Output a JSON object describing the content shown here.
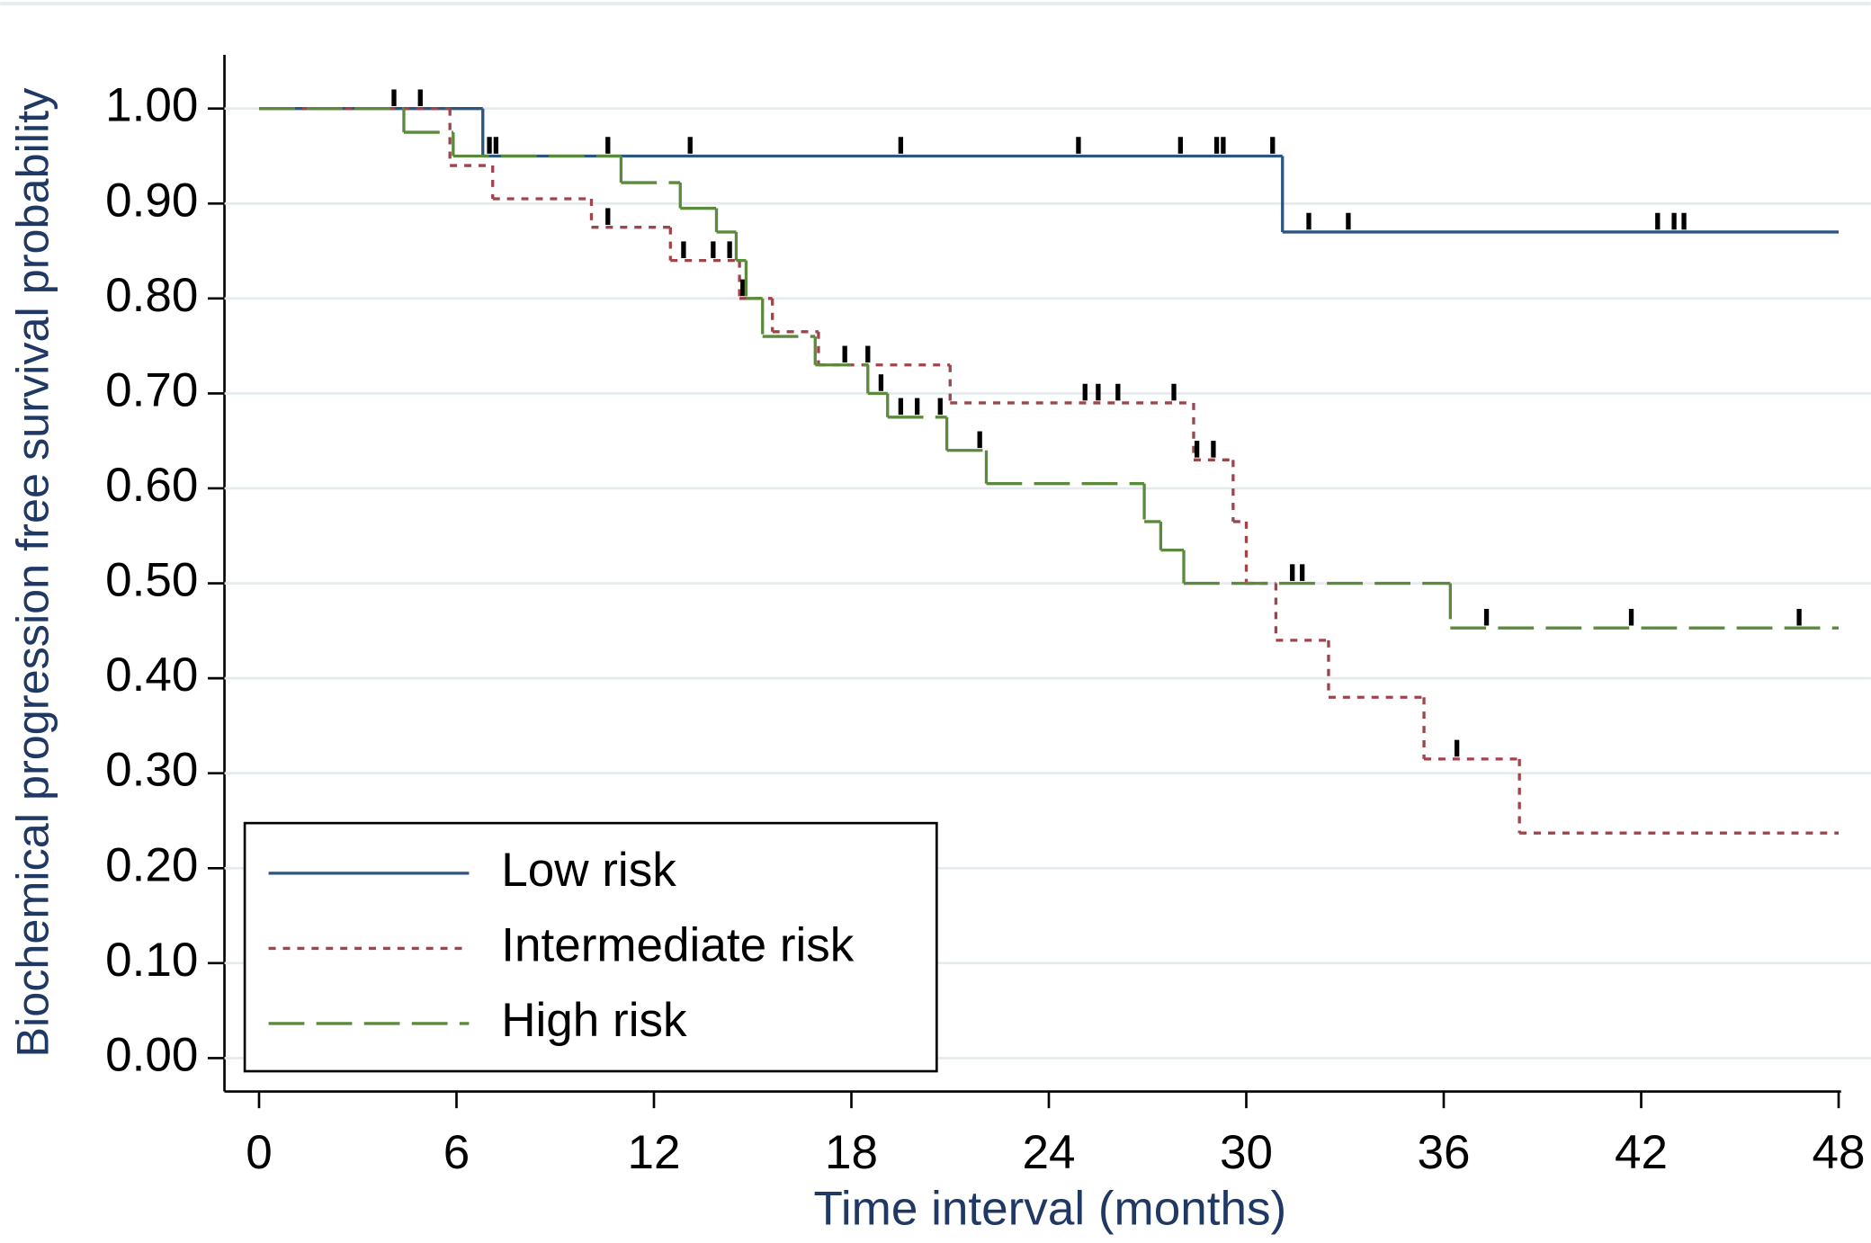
{
  "chart_data": {
    "type": "step",
    "xlabel": "Time interval (months)",
    "ylabel": "Biochemical progression free survival probability",
    "xlim": [
      0,
      48
    ],
    "ylim": [
      0,
      1
    ],
    "xticks": [
      0,
      6,
      12,
      18,
      24,
      30,
      36,
      42,
      48
    ],
    "yticks": [
      {
        "value": 0,
        "label": "0.00"
      },
      {
        "value": 0.1,
        "label": "0.10"
      },
      {
        "value": 0.2,
        "label": "0.20"
      },
      {
        "value": 0.3,
        "label": "0.30"
      },
      {
        "value": 0.4,
        "label": "0.40"
      },
      {
        "value": 0.5,
        "label": "0.50"
      },
      {
        "value": 0.6,
        "label": "0.60"
      },
      {
        "value": 0.7,
        "label": "0.70"
      },
      {
        "value": 0.8,
        "label": "0.80"
      },
      {
        "value": 0.9,
        "label": "0.90"
      },
      {
        "value": 1,
        "label": "1.00"
      }
    ],
    "grid": true,
    "legend": "lower left",
    "series": [
      {
        "name": "Low risk",
        "color": "#2b5582",
        "dash": "none",
        "x": [
          0,
          6.8,
          31.1
        ],
        "values": [
          1.0,
          0.95,
          0.87
        ],
        "censored": [
          4.1,
          4.9,
          7.0,
          10.6,
          13.1,
          19.5,
          24.9,
          28.0,
          29.1,
          29.3,
          30.8,
          31.9,
          33.1,
          42.5,
          43.0,
          43.3
        ]
      },
      {
        "name": "Intermediate risk",
        "color": "#a0444c",
        "dash": "6,6",
        "x": [
          0,
          5.8,
          7.1,
          10.1,
          12.5,
          14.6,
          15.6,
          17.0,
          21.0,
          28.4,
          29.6,
          30.0,
          30.9,
          32.5,
          35.4,
          38.3
        ],
        "values": [
          1.0,
          0.94,
          0.905,
          0.875,
          0.84,
          0.8,
          0.765,
          0.73,
          0.69,
          0.63,
          0.565,
          0.5,
          0.44,
          0.38,
          0.315,
          0.237
        ],
        "censored": [
          10.6,
          12.9,
          13.8,
          14.3,
          14.7,
          17.8,
          18.5,
          25.1,
          25.5,
          26.1,
          27.8,
          28.5,
          29.0,
          36.4
        ]
      },
      {
        "name": "High risk",
        "color": "#5b8a3c",
        "dash": "30,10",
        "x": [
          0,
          4.4,
          5.9,
          11.0,
          12.8,
          13.9,
          14.5,
          14.8,
          15.3,
          16.9,
          18.5,
          19.1,
          20.9,
          22.1,
          26.9,
          27.4,
          28.1,
          36.2
        ],
        "values": [
          1.0,
          0.975,
          0.95,
          0.922,
          0.895,
          0.87,
          0.84,
          0.8,
          0.76,
          0.73,
          0.7,
          0.675,
          0.64,
          0.605,
          0.565,
          0.535,
          0.5,
          0.453
        ],
        "censored": [
          7.2,
          18.9,
          19.5,
          20.0,
          20.7,
          21.9,
          31.4,
          31.7,
          37.3,
          41.7,
          46.8
        ]
      }
    ]
  }
}
